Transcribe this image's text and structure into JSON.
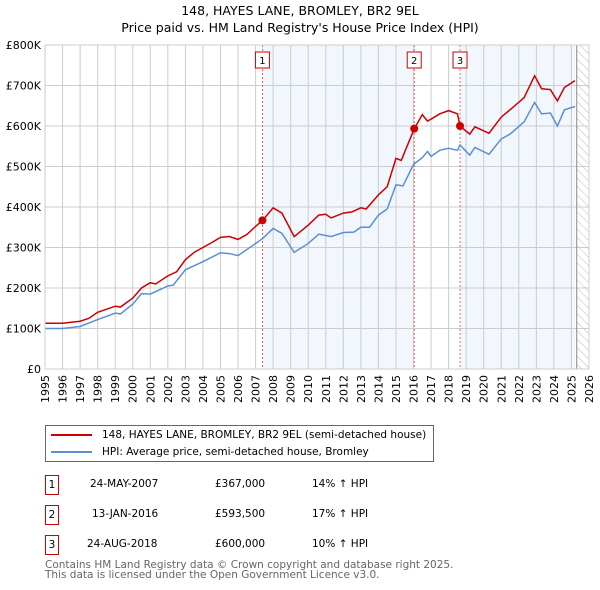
{
  "chart_data": {
    "type": "line",
    "title": "148, HAYES LANE, BROMLEY, BR2 9EL",
    "subtitle": "Price paid vs. HM Land Registry's House Price Index (HPI)",
    "xlim": [
      1995,
      2026
    ],
    "ylim": [
      0,
      800
    ],
    "x_ticks": [
      "1995",
      "1996",
      "1997",
      "1998",
      "1999",
      "2000",
      "2001",
      "2002",
      "2003",
      "2004",
      "2005",
      "2006",
      "2007",
      "2008",
      "2009",
      "2010",
      "2011",
      "2012",
      "2013",
      "2014",
      "2015",
      "2016",
      "2017",
      "2018",
      "2019",
      "2020",
      "2021",
      "2022",
      "2023",
      "2024",
      "2025",
      "2026"
    ],
    "y_ticks": [
      {
        "v": 0,
        "label": "£0"
      },
      {
        "v": 100,
        "label": "£100K"
      },
      {
        "v": 200,
        "label": "£200K"
      },
      {
        "v": 300,
        "label": "£300K"
      },
      {
        "v": 400,
        "label": "£400K"
      },
      {
        "v": 500,
        "label": "£500K"
      },
      {
        "v": 600,
        "label": "£600K"
      },
      {
        "v": 700,
        "label": "£700K"
      },
      {
        "v": 800,
        "label": "£800K"
      }
    ],
    "grid": true,
    "series": [
      {
        "name": "148, HAYES LANE, BROMLEY, BR2 9EL (semi-detached house)",
        "color": "#cc0000",
        "points": [
          [
            1995,
            113
          ],
          [
            1996,
            113
          ],
          [
            1997,
            118
          ],
          [
            1997.5,
            125
          ],
          [
            1998,
            140
          ],
          [
            1999,
            155
          ],
          [
            1999.3,
            153
          ],
          [
            2000,
            175
          ],
          [
            2000.5,
            200
          ],
          [
            2001,
            213
          ],
          [
            2001.3,
            210
          ],
          [
            2002,
            230
          ],
          [
            2002.5,
            240
          ],
          [
            2003,
            270
          ],
          [
            2003.5,
            288
          ],
          [
            2004,
            300
          ],
          [
            2004.5,
            312
          ],
          [
            2005,
            325
          ],
          [
            2005.5,
            327
          ],
          [
            2006,
            320
          ],
          [
            2006.5,
            332
          ],
          [
            2007,
            352
          ],
          [
            2007.4,
            367
          ],
          [
            2008,
            398
          ],
          [
            2008.5,
            385
          ],
          [
            2009.2,
            327
          ],
          [
            2010,
            355
          ],
          [
            2010.6,
            380
          ],
          [
            2011,
            382
          ],
          [
            2011.3,
            373
          ],
          [
            2012,
            385
          ],
          [
            2012.5,
            388
          ],
          [
            2013,
            398
          ],
          [
            2013.3,
            395
          ],
          [
            2014,
            430
          ],
          [
            2014.5,
            450
          ],
          [
            2015,
            520
          ],
          [
            2015.3,
            515
          ],
          [
            2016.04,
            593
          ],
          [
            2016.5,
            628
          ],
          [
            2016.8,
            612
          ],
          [
            2017.5,
            630
          ],
          [
            2018,
            638
          ],
          [
            2018.5,
            630
          ],
          [
            2018.65,
            600
          ],
          [
            2019.2,
            580
          ],
          [
            2019.5,
            598
          ],
          [
            2020.3,
            582
          ],
          [
            2021,
            622
          ],
          [
            2021.5,
            640
          ],
          [
            2022.3,
            670
          ],
          [
            2022.9,
            724
          ],
          [
            2023.3,
            692
          ],
          [
            2023.8,
            690
          ],
          [
            2024.2,
            662
          ],
          [
            2024.6,
            695
          ],
          [
            2025.2,
            712
          ]
        ]
      },
      {
        "name": "HPI: Average price, semi-detached house, Bromley",
        "color": "#5b8fd4",
        "points": [
          [
            1995,
            100
          ],
          [
            1996,
            100
          ],
          [
            1997,
            105
          ],
          [
            1998,
            122
          ],
          [
            1999,
            138
          ],
          [
            1999.3,
            136
          ],
          [
            2000,
            160
          ],
          [
            2000.5,
            186
          ],
          [
            2001,
            185
          ],
          [
            2002,
            205
          ],
          [
            2002.3,
            207
          ],
          [
            2003,
            245
          ],
          [
            2004,
            265
          ],
          [
            2005,
            287
          ],
          [
            2005.5,
            285
          ],
          [
            2006,
            280
          ],
          [
            2007,
            310
          ],
          [
            2007.4,
            322
          ],
          [
            2008,
            347
          ],
          [
            2008.5,
            335
          ],
          [
            2009.2,
            288
          ],
          [
            2010,
            310
          ],
          [
            2010.6,
            333
          ],
          [
            2011.3,
            327
          ],
          [
            2012,
            337
          ],
          [
            2012.6,
            338
          ],
          [
            2013,
            350
          ],
          [
            2013.5,
            350
          ],
          [
            2014,
            380
          ],
          [
            2014.5,
            395
          ],
          [
            2015,
            455
          ],
          [
            2015.4,
            452
          ],
          [
            2016,
            505
          ],
          [
            2016.5,
            522
          ],
          [
            2016.8,
            537
          ],
          [
            2017,
            525
          ],
          [
            2017.5,
            540
          ],
          [
            2018,
            545
          ],
          [
            2018.5,
            540
          ],
          [
            2018.65,
            553
          ],
          [
            2019.2,
            528
          ],
          [
            2019.5,
            547
          ],
          [
            2020.3,
            530
          ],
          [
            2021,
            568
          ],
          [
            2021.5,
            580
          ],
          [
            2022.3,
            610
          ],
          [
            2022.9,
            658
          ],
          [
            2023.3,
            630
          ],
          [
            2023.8,
            632
          ],
          [
            2024.2,
            600
          ],
          [
            2024.6,
            640
          ],
          [
            2025.2,
            648
          ]
        ]
      }
    ],
    "sales": [
      {
        "id": "1",
        "x": 2007.39,
        "y": 367
      },
      {
        "id": "2",
        "x": 2016.04,
        "y": 593.5
      },
      {
        "id": "3",
        "x": 2018.65,
        "y": 600
      }
    ],
    "shaded_ranges": [
      [
        2007.39,
        2016.04
      ],
      [
        2018.65,
        2025.2
      ]
    ],
    "forecast_start": 2025.3,
    "legend_placement": "below"
  },
  "table": [
    {
      "num": "1",
      "date": "24-MAY-2007",
      "price": "£367,000",
      "hpi": "14% ↑ HPI"
    },
    {
      "num": "2",
      "date": "13-JAN-2016",
      "price": "£593,500",
      "hpi": "17% ↑ HPI"
    },
    {
      "num": "3",
      "date": "24-AUG-2018",
      "price": "£600,000",
      "hpi": "10% ↑ HPI"
    }
  ],
  "footer": {
    "line1": "Contains HM Land Registry data © Crown copyright and database right 2025.",
    "line2": "This data is licensed under the Open Government Licence v3.0."
  }
}
